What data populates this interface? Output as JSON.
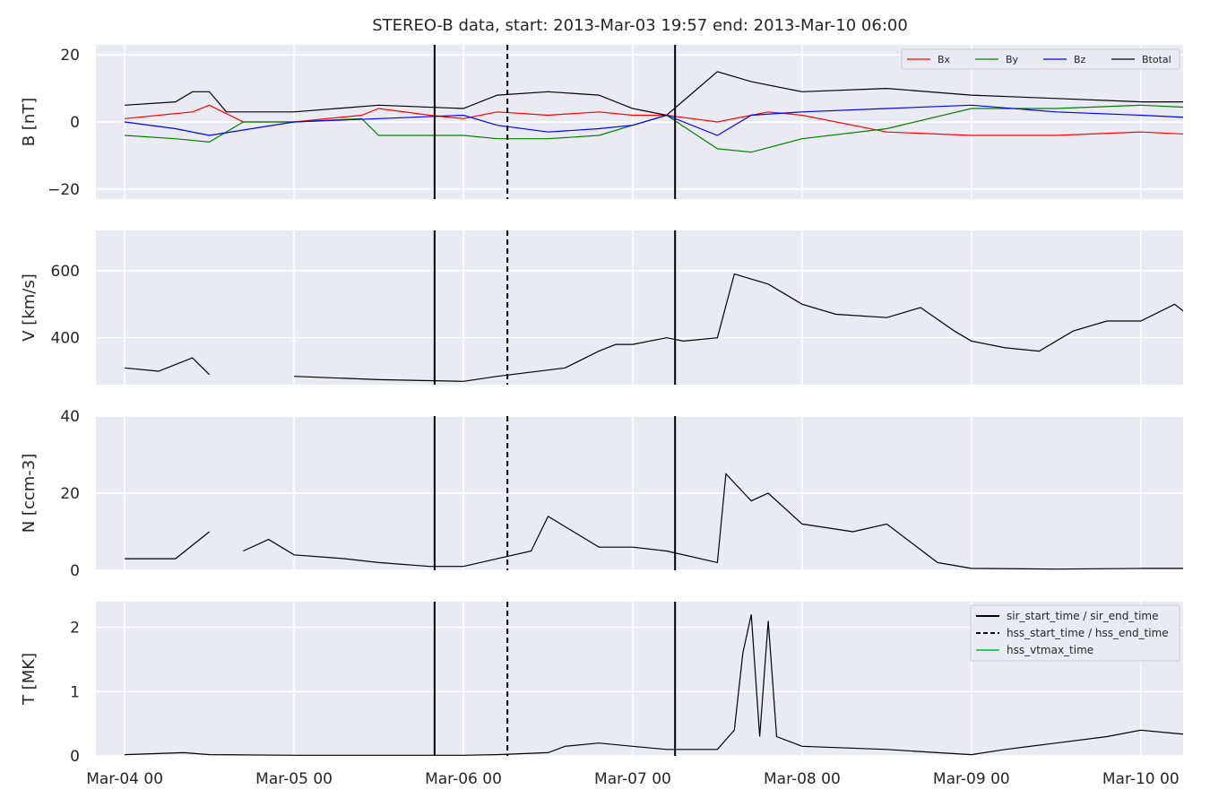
{
  "title": "STEREO-B data, start: 2013-Mar-03 19:57  end: 2013-Mar-10 06:00",
  "colors": {
    "bg": "#eaeaf2",
    "grid": "#ffffff",
    "Bx": "#ff0000",
    "By": "#008000",
    "Bz": "#0000ff",
    "Btotal": "#000000",
    "vtmax": "#2ecc71"
  },
  "chart_data": [
    {
      "type": "line",
      "panel": "B",
      "ylabel": "B [nT]",
      "ylim": [
        -23,
        23
      ],
      "yticks": [
        -20,
        0,
        20
      ],
      "ytick_labels": [
        "−20",
        "0",
        "20"
      ],
      "legend": [
        "Bx",
        "By",
        "Bz",
        "Btotal"
      ],
      "legend_placement": "top-right",
      "series": [
        {
          "name": "Bx",
          "x": [
            0,
            0.4,
            0.5,
            0.7,
            1.0,
            1.4,
            1.5,
            1.8,
            2.0,
            2.2,
            2.5,
            2.8,
            3.0,
            3.2,
            3.5,
            3.8,
            4.0,
            4.5,
            5.0,
            5.5,
            6.0,
            6.42
          ],
          "values": [
            1,
            3,
            5,
            0,
            0,
            2,
            4,
            2,
            1,
            3,
            2,
            3,
            2,
            2,
            0,
            3,
            2,
            -3,
            -4,
            -4,
            -3,
            -4
          ]
        },
        {
          "name": "By",
          "x": [
            0,
            0.3,
            0.5,
            0.7,
            1.0,
            1.4,
            1.5,
            2.0,
            2.2,
            2.5,
            2.8,
            3.0,
            3.2,
            3.5,
            3.7,
            4.0,
            4.5,
            5.0,
            5.5,
            6.0,
            6.42
          ],
          "values": [
            -4,
            -5,
            -6,
            0,
            0,
            1,
            -4,
            -4,
            -5,
            -5,
            -4,
            -1,
            2,
            -8,
            -9,
            -5,
            -2,
            4,
            4,
            5,
            4
          ]
        },
        {
          "name": "Bz",
          "x": [
            0,
            0.3,
            0.5,
            1.0,
            1.5,
            2.0,
            2.2,
            2.5,
            2.8,
            3.0,
            3.2,
            3.5,
            3.7,
            4.0,
            4.5,
            5.0,
            5.5,
            6.0,
            6.42
          ],
          "values": [
            0,
            -2,
            -4,
            0,
            1,
            2,
            -1,
            -3,
            -2,
            -1,
            2,
            -4,
            2,
            3,
            4,
            5,
            3,
            2,
            1
          ]
        },
        {
          "name": "Btotal",
          "x": [
            0,
            0.3,
            0.4,
            0.5,
            0.6,
            1.0,
            1.5,
            2.0,
            2.2,
            2.5,
            2.8,
            3.0,
            3.2,
            3.5,
            3.7,
            4.0,
            4.5,
            5.0,
            5.5,
            6.0,
            6.42
          ],
          "values": [
            5,
            6,
            9,
            9,
            3,
            3,
            5,
            4,
            8,
            9,
            8,
            4,
            2,
            15,
            12,
            9,
            10,
            8,
            7,
            6,
            6
          ]
        }
      ]
    },
    {
      "type": "line",
      "panel": "V",
      "ylabel": "V [km/s]",
      "ylim": [
        260,
        720
      ],
      "yticks": [
        400,
        600
      ],
      "ytick_labels": [
        "400",
        "600"
      ],
      "series": [
        {
          "x": [
            0,
            0.2,
            0.4,
            0.5,
            0.6,
            1.0,
            1.5,
            2.0,
            2.2,
            2.6,
            2.8,
            2.9,
            3.0,
            3.2,
            3.3,
            3.5,
            3.6,
            3.8,
            4.0,
            4.2,
            4.5,
            4.7,
            4.9,
            5.0,
            5.2,
            5.4,
            5.6,
            5.8,
            6.0,
            6.2,
            6.3,
            6.42
          ],
          "values": [
            310,
            300,
            340,
            290,
            null,
            285,
            275,
            270,
            285,
            310,
            360,
            380,
            380,
            400,
            390,
            400,
            590,
            560,
            500,
            470,
            460,
            490,
            420,
            390,
            370,
            360,
            420,
            450,
            450,
            500,
            460,
            500
          ]
        }
      ]
    },
    {
      "type": "line",
      "panel": "N",
      "ylabel": "N [ccm-3]",
      "ylim": [
        0,
        40
      ],
      "yticks": [
        0,
        20,
        40
      ],
      "ytick_labels": [
        "0",
        "20",
        "40"
      ],
      "series": [
        {
          "x": [
            0,
            0.3,
            0.5,
            0.55,
            0.7,
            0.85,
            1.0,
            1.3,
            1.5,
            1.8,
            2.0,
            2.2,
            2.4,
            2.5,
            2.8,
            3.0,
            3.2,
            3.5,
            3.55,
            3.7,
            3.8,
            4.0,
            4.3,
            4.5,
            4.8,
            5.0,
            5.5,
            6.0,
            6.42
          ],
          "values": [
            3,
            3,
            10,
            null,
            5,
            8,
            4,
            3,
            2,
            1,
            1,
            3,
            5,
            14,
            6,
            6,
            5,
            2,
            25,
            18,
            20,
            12,
            10,
            12,
            2,
            0.5,
            0.3,
            0.5,
            0.5
          ]
        }
      ]
    },
    {
      "type": "line",
      "panel": "T",
      "ylabel": "T [MK]",
      "ylim": [
        0,
        2.4
      ],
      "yticks": [
        0,
        1,
        2
      ],
      "ytick_labels": [
        "0",
        "1",
        "2"
      ],
      "legend": [
        "sir_start_time / sir_end_time",
        "hss_start_time / hss_end_time",
        "hss_vtmax_time"
      ],
      "legend_placement": "top-right",
      "series": [
        {
          "x": [
            0,
            0.35,
            0.5,
            1.0,
            1.5,
            2.0,
            2.2,
            2.5,
            2.6,
            2.8,
            3.0,
            3.2,
            3.5,
            3.6,
            3.65,
            3.7,
            3.75,
            3.8,
            3.85,
            4.0,
            4.5,
            4.8,
            5.0,
            5.2,
            5.5,
            5.8,
            6.0,
            6.2,
            6.42
          ],
          "values": [
            0.02,
            0.05,
            0.02,
            0.01,
            0.01,
            0.01,
            0.02,
            0.05,
            0.15,
            0.2,
            0.15,
            0.1,
            0.1,
            0.4,
            1.6,
            2.2,
            0.3,
            2.1,
            0.3,
            0.15,
            0.1,
            0.05,
            0.02,
            0.1,
            0.2,
            0.3,
            0.4,
            0.35,
            0.3
          ]
        }
      ]
    }
  ],
  "x_axis": {
    "ticks": [
      0,
      1,
      2,
      3,
      4,
      5,
      6
    ],
    "tick_labels": [
      "Mar-04 00",
      "Mar-05 00",
      "Mar-06 00",
      "Mar-07 00",
      "Mar-08 00",
      "Mar-09 00",
      "Mar-10 00"
    ],
    "xlim": [
      -0.17,
      6.25
    ]
  },
  "events": {
    "sir_start": 1.83,
    "hss_start": 2.26,
    "sir_end": 3.25
  }
}
